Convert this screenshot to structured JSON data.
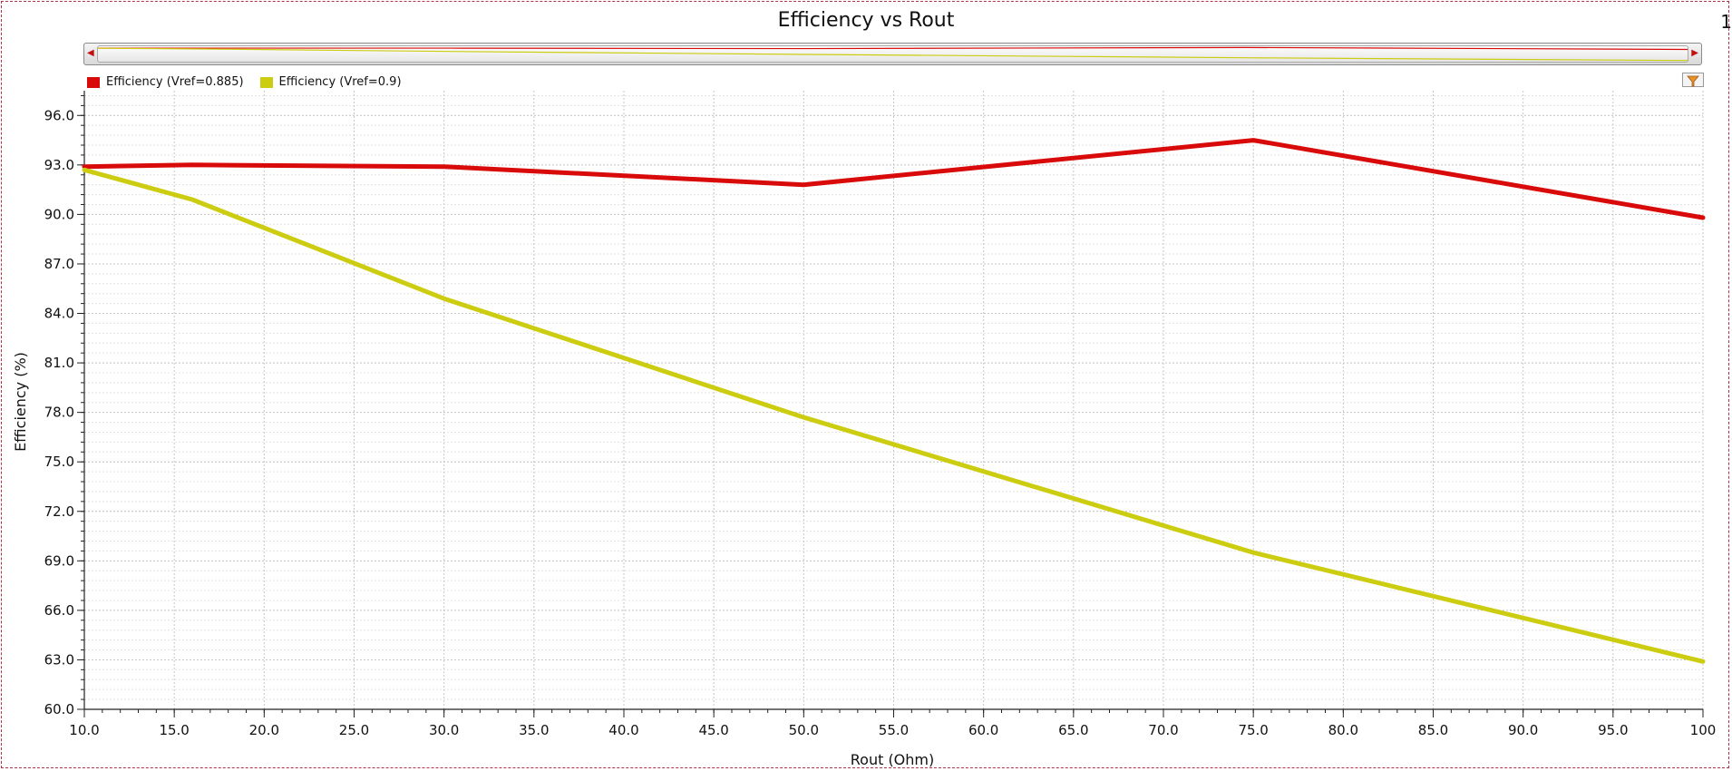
{
  "header": {
    "corner_text": "1"
  },
  "legend": [
    {
      "label": "Efficiency (Vref=0.885)",
      "color": "#d80a0a"
    },
    {
      "label": "Efficiency (Vref=0.9)",
      "color": "#cccc10"
    }
  ],
  "chart_data": {
    "type": "line",
    "title": "Efficiency vs Rout",
    "xlabel": "Rout (Ohm)",
    "ylabel": "Efficiency (%)",
    "xlim": [
      10,
      100
    ],
    "ylim": [
      60,
      97.5
    ],
    "xticks": [
      "10.0",
      "15.0",
      "20.0",
      "25.0",
      "30.0",
      "35.0",
      "40.0",
      "45.0",
      "50.0",
      "55.0",
      "60.0",
      "65.0",
      "70.0",
      "75.0",
      "80.0",
      "85.0",
      "90.0",
      "95.0",
      "100"
    ],
    "yticks": [
      "60.0",
      "63.0",
      "66.0",
      "69.0",
      "72.0",
      "75.0",
      "78.0",
      "81.0",
      "84.0",
      "87.0",
      "90.0",
      "93.0",
      "96.0"
    ],
    "grid": true,
    "legend_position": "top-left",
    "series": [
      {
        "name": "Efficiency (Vref=0.885)",
        "color": "#d80a0a",
        "x": [
          10,
          16,
          30,
          50,
          75,
          100
        ],
        "y": [
          92.9,
          93.0,
          92.9,
          91.8,
          94.5,
          89.8
        ]
      },
      {
        "name": "Efficiency (Vref=0.9)",
        "color": "#cccc10",
        "x": [
          10,
          16,
          30,
          50,
          75,
          100
        ],
        "y": [
          92.7,
          90.9,
          84.9,
          77.7,
          69.5,
          62.9
        ]
      }
    ]
  }
}
